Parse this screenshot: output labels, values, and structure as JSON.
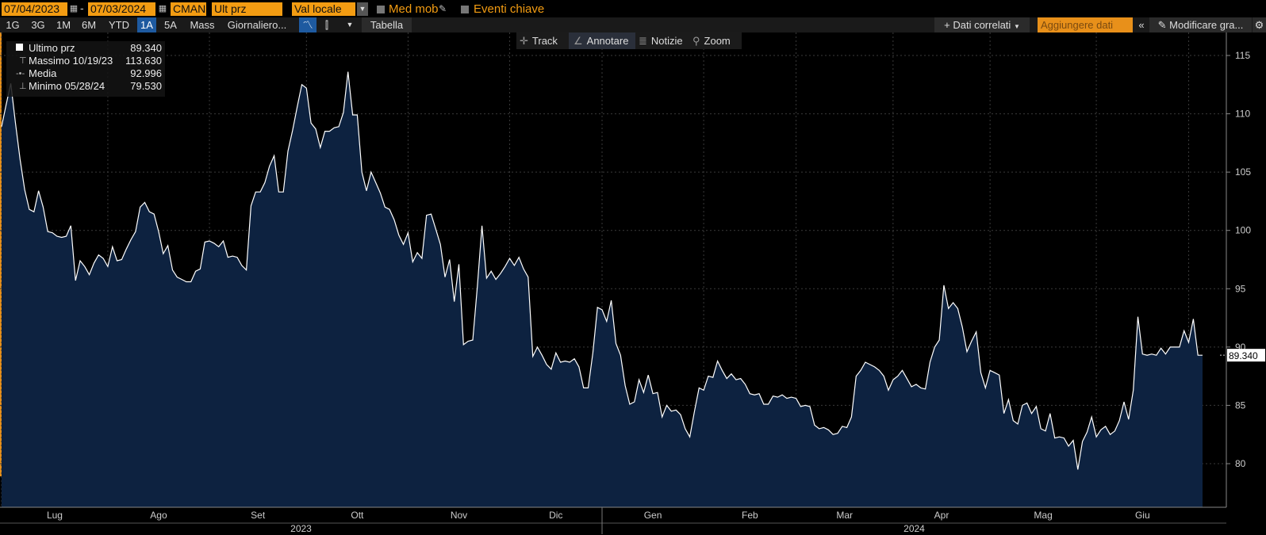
{
  "header": {
    "start_date": "07/04/2023",
    "end_date": "07/03/2024",
    "calc": "CMAN",
    "field": "Ult prz",
    "currency": "Val locale",
    "moving_avg_label": "Med mob",
    "key_events_label": "Eventi chiave"
  },
  "periods": [
    "1G",
    "3G",
    "1M",
    "6M",
    "YTD",
    "1A",
    "5A",
    "Mass"
  ],
  "selected_period": "1A",
  "frequency": "Giornaliero...",
  "table_label": "Tabella",
  "related_data": "+ Dati correlati",
  "add_data": "Aggiungere dati",
  "edit_chart": "Modificare gra...",
  "tools": {
    "track": "Track",
    "annotate": "Annotare",
    "news": "Notizie",
    "zoom": "Zoom"
  },
  "legend": {
    "last": {
      "label": "Ultimo prz",
      "value": "89.340"
    },
    "high": {
      "label": "Massimo 10/19/23",
      "value": "113.630"
    },
    "avg": {
      "label": "Media",
      "value": "92.996"
    },
    "low": {
      "label": "Minimo 05/28/24",
      "value": "79.530"
    }
  },
  "last_price_tag": "89.340",
  "colors": {
    "accent": "#f39c12",
    "fill": "#0d2240",
    "line": "#ffffff",
    "selected": "#1e5aa0"
  },
  "chart_data": {
    "type": "area",
    "title": "",
    "xlabel": "",
    "ylabel": "",
    "ylim": [
      76.5,
      117.5
    ],
    "yticks": [
      80,
      85,
      90,
      95,
      100,
      105,
      110,
      115
    ],
    "months": [
      "Lug",
      "Ago",
      "Set",
      "Ott",
      "Nov",
      "Dic",
      "Gen",
      "Feb",
      "Mar",
      "Apr",
      "Mag",
      "Giu"
    ],
    "years": [
      "2023",
      "2024"
    ],
    "grid": true,
    "series": [
      {
        "values": [
          108.9,
          110.8,
          112.6,
          109.2,
          106.1,
          103.5,
          101.8,
          101.6,
          103.4,
          102.0,
          99.9,
          99.8,
          99.5,
          99.4,
          99.5,
          100.4,
          95.7,
          97.4,
          96.9,
          96.2,
          97.2,
          97.9,
          97.6,
          96.9,
          98.6,
          97.4,
          97.5,
          98.4,
          99.2,
          99.9,
          102.0,
          102.4,
          101.6,
          101.4,
          99.9,
          98.0,
          98.7,
          96.6,
          96.0,
          95.8,
          95.6,
          95.6,
          96.5,
          96.7,
          99.0,
          99.1,
          98.9,
          98.6,
          99.1,
          97.7,
          97.8,
          97.7,
          97.0,
          96.6,
          102.1,
          103.3,
          103.3,
          104.1,
          105.5,
          106.4,
          103.3,
          103.3,
          106.8,
          108.6,
          110.6,
          112.5,
          112.2,
          109.2,
          108.7,
          107.1,
          108.5,
          108.5,
          108.8,
          108.9,
          110.1,
          113.6,
          109.9,
          109.9,
          105.0,
          103.4,
          105.0,
          104.1,
          103.2,
          102.0,
          101.8,
          100.9,
          99.6,
          98.8,
          99.8,
          97.3,
          98.1,
          97.6,
          101.3,
          101.4,
          100.1,
          98.8,
          96.0,
          97.5,
          93.9,
          97.1,
          90.2,
          90.5,
          90.6,
          95.2,
          100.4,
          95.9,
          96.5,
          95.8,
          96.3,
          96.9,
          97.6,
          97.0,
          97.7,
          96.7,
          96.0,
          89.2,
          90.0,
          89.3,
          88.5,
          88.1,
          89.5,
          88.7,
          88.8,
          88.7,
          89.0,
          88.3,
          86.5,
          86.5,
          89.5,
          93.4,
          93.2,
          92.2,
          94.0,
          90.3,
          89.3,
          86.7,
          85.1,
          85.3,
          87.2,
          86.1,
          87.6,
          86.0,
          86.1,
          84.0,
          85.0,
          84.5,
          84.6,
          84.2,
          83.0,
          82.3,
          84.5,
          86.5,
          86.3,
          87.5,
          87.4,
          88.8,
          88.0,
          87.3,
          87.7,
          87.2,
          87.3,
          86.8,
          86.0,
          85.9,
          86.0,
          85.1,
          85.1,
          85.8,
          85.7,
          85.9,
          85.6,
          85.7,
          85.6,
          84.9,
          85.0,
          84.9,
          83.3,
          83.0,
          83.1,
          82.9,
          82.5,
          82.6,
          83.2,
          83.1,
          84.0,
          87.5,
          88.0,
          88.7,
          88.5,
          88.3,
          88.0,
          87.5,
          86.3,
          87.2,
          87.5,
          88.0,
          87.3,
          86.6,
          86.8,
          86.5,
          86.4,
          88.7,
          90.0,
          90.6,
          95.3,
          93.3,
          93.8,
          93.3,
          91.7,
          89.6,
          90.5,
          91.3,
          87.8,
          86.5,
          88.0,
          87.8,
          87.6,
          84.3,
          85.5,
          83.7,
          83.4,
          85.0,
          85.2,
          84.3,
          84.9,
          83.0,
          82.8,
          84.3,
          82.2,
          82.3,
          82.2,
          81.5,
          82.0,
          79.5,
          81.9,
          82.7,
          84.0,
          82.3,
          82.9,
          83.2,
          82.5,
          82.8,
          83.7,
          85.3,
          83.8,
          86.3,
          92.6,
          89.4,
          89.3,
          89.4,
          89.3,
          89.9,
          89.4,
          90.0,
          90.0,
          90.0,
          91.4,
          90.4,
          92.4,
          89.3,
          89.3
        ],
        "month_starts": [
          0,
          23,
          45,
          66,
          88,
          110,
          130,
          152,
          172,
          193,
          214,
          237,
          257
        ]
      }
    ]
  }
}
